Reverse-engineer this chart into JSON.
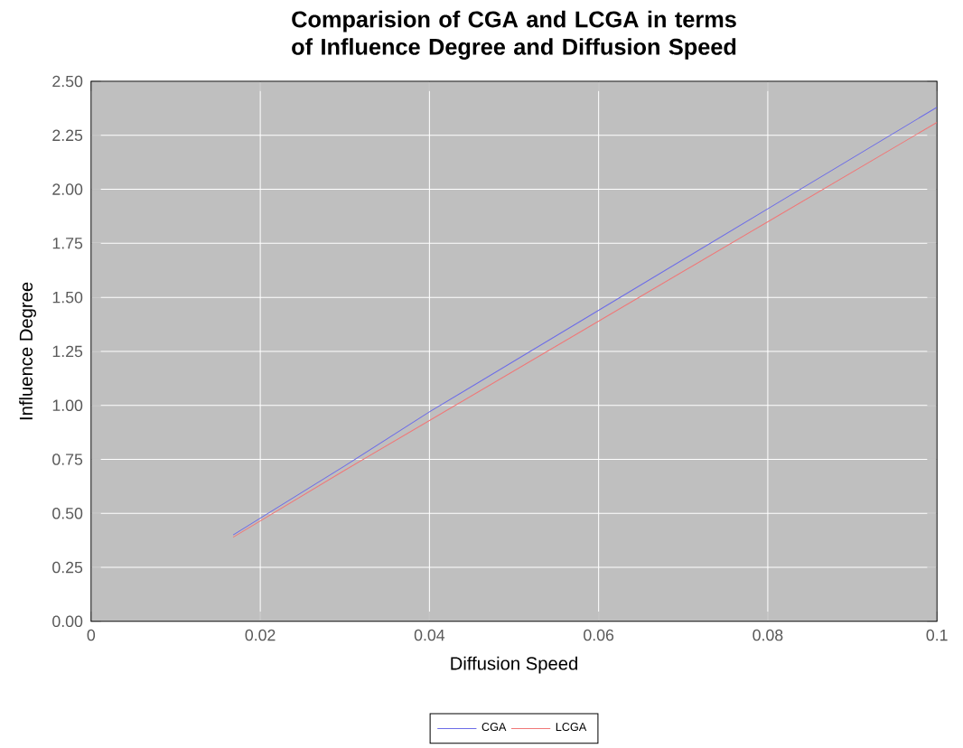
{
  "chart_data": {
    "type": "line",
    "title": "Comparision of CGA and LCGA in terms of Influence Degree and Diffusion Speed",
    "xlabel": "Diffusion Speed",
    "ylabel": "Influence Degree",
    "x": [
      0.0168,
      0.03,
      0.04,
      0.06,
      0.08,
      0.1
    ],
    "series": [
      {
        "name": "CGA",
        "color": "#6c6ce8",
        "values": [
          0.4,
          0.72,
          0.97,
          1.44,
          1.91,
          2.38
        ]
      },
      {
        "name": "LCGA",
        "color": "#f07878",
        "values": [
          0.39,
          0.7,
          0.93,
          1.39,
          1.85,
          2.31
        ]
      }
    ],
    "xlim": [
      0,
      0.1
    ],
    "xticks": [
      {
        "value": 0,
        "label": "0"
      },
      0.02,
      0.04,
      0.06,
      0.08,
      0.1
    ],
    "ylim": [
      0,
      2.5
    ],
    "yticks": [
      {
        "value": 0,
        "label": "0.00"
      },
      0.25,
      {
        "value": 0.5,
        "label": "0.50"
      },
      0.75,
      {
        "value": 1,
        "label": "1.00"
      },
      1.25,
      {
        "value": 1.5,
        "label": "1.50"
      },
      1.75,
      {
        "value": 2,
        "label": "2.00"
      },
      2.25,
      {
        "value": 2.5,
        "label": "2.50"
      }
    ],
    "grid": true,
    "legend": "bottom",
    "marker": "none",
    "line_style": "solid"
  }
}
